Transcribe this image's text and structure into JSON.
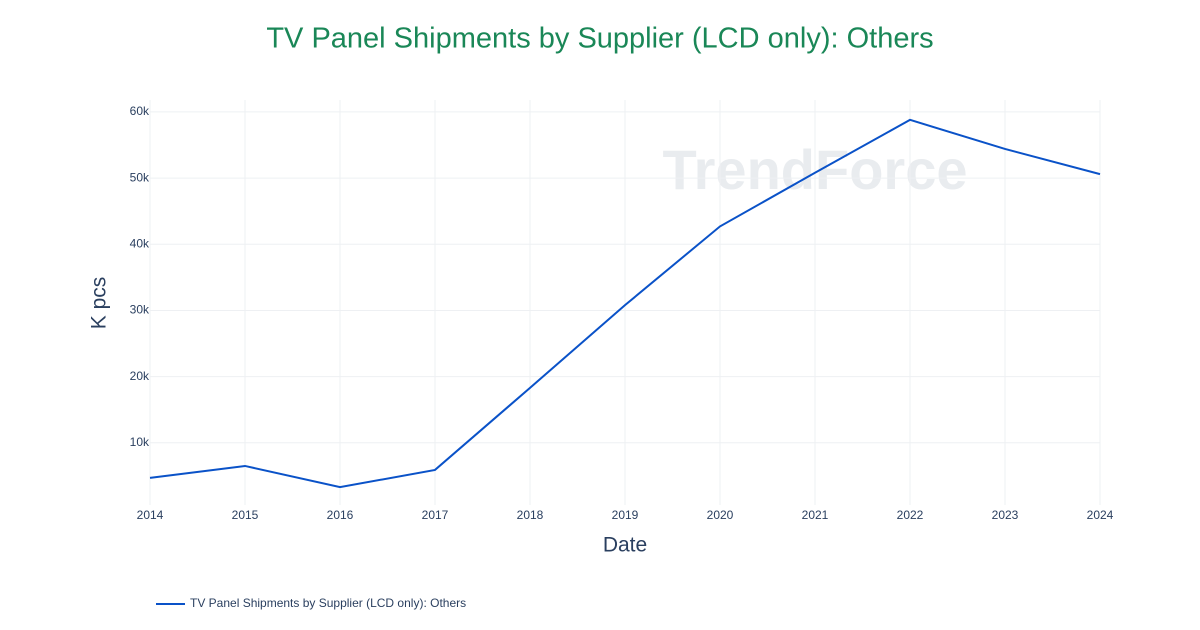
{
  "chart_data": {
    "type": "line",
    "title": "TV Panel Shipments by Supplier (LCD only): Others",
    "watermark": "TrendForce",
    "x_label": "Date",
    "y_label": "K pcs",
    "x": [
      2014,
      2015,
      2016,
      2017,
      2018,
      2019,
      2020,
      2021,
      2022,
      2023,
      2024
    ],
    "series": [
      {
        "name": "TV Panel Shipments by Supplier (LCD only): Others",
        "color": "#0a52c8",
        "values": [
          4700,
          6500,
          3300,
          5900,
          18300,
          30800,
          42700,
          50800,
          58800,
          54400,
          50600
        ]
      }
    ],
    "xlim": [
      2014,
      2024
    ],
    "xticks": [
      2014,
      2015,
      2016,
      2017,
      2018,
      2019,
      2020,
      2021,
      2022,
      2023,
      2024
    ],
    "ylim": [
      600,
      61800
    ],
    "yticks": [
      {
        "value": 10000,
        "label": "10k"
      },
      {
        "value": 20000,
        "label": "20k"
      },
      {
        "value": 30000,
        "label": "30k"
      },
      {
        "value": 40000,
        "label": "40k"
      },
      {
        "value": 50000,
        "label": "50k"
      },
      {
        "value": 60000,
        "label": "60k"
      }
    ],
    "grid": true
  }
}
